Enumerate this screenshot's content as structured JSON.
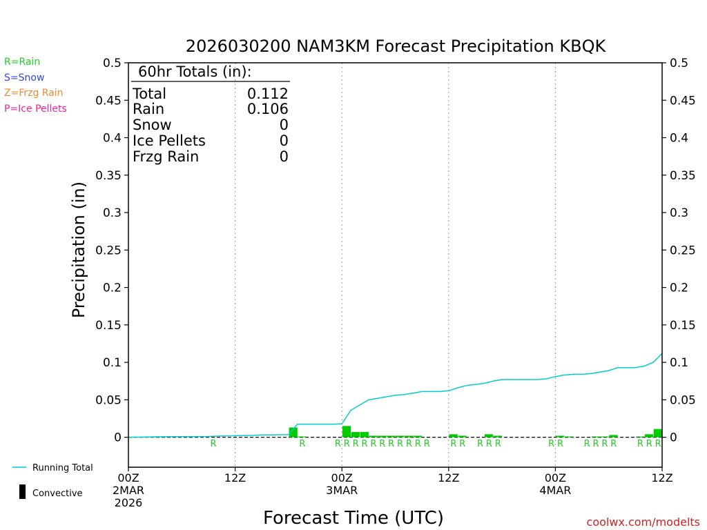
{
  "chart_data": {
    "type": "bar",
    "title": "2026030200 NAM3KM Forecast Precipitation KBQK",
    "xlabel": "Forecast Time (UTC)",
    "ylabel": "Precipitation (in)",
    "ylim": [
      -0.04,
      0.5
    ],
    "xlim": [
      0,
      60
    ],
    "y_ticks": [
      0,
      0.05,
      0.1,
      0.15,
      0.2,
      0.25,
      0.3,
      0.35,
      0.4,
      0.45,
      0.5
    ],
    "y_tick_labels": [
      "0",
      "0.05",
      "0.1",
      "0.15",
      "0.2",
      "0.25",
      "0.3",
      "0.35",
      "0.4",
      "0.45",
      "0.5"
    ],
    "x_ticks": [
      {
        "hour": 0,
        "lines": [
          "00Z",
          "2MAR",
          "2026"
        ]
      },
      {
        "hour": 12,
        "lines": [
          "12Z"
        ]
      },
      {
        "hour": 24,
        "lines": [
          "00Z",
          "3MAR"
        ]
      },
      {
        "hour": 36,
        "lines": [
          "12Z"
        ]
      },
      {
        "hour": 48,
        "lines": [
          "00Z",
          "4MAR"
        ]
      },
      {
        "hour": 60,
        "lines": [
          "12Z"
        ]
      }
    ],
    "grid_hours": [
      12,
      24,
      36,
      48
    ],
    "series": [
      {
        "name": "Convective",
        "type": "bar",
        "color": "#00cc00",
        "points": [
          {
            "hour": 19,
            "value": 0.013
          },
          {
            "hour": 20,
            "value": 0.001
          },
          {
            "hour": 25,
            "value": 0.015
          },
          {
            "hour": 26,
            "value": 0.007
          },
          {
            "hour": 27,
            "value": 0.007
          },
          {
            "hour": 28,
            "value": 0.002
          },
          {
            "hour": 29,
            "value": 0.002
          },
          {
            "hour": 30,
            "value": 0.002
          },
          {
            "hour": 31,
            "value": 0.002
          },
          {
            "hour": 32,
            "value": 0.002
          },
          {
            "hour": 33,
            "value": 0.002
          },
          {
            "hour": 37,
            "value": 0.004
          },
          {
            "hour": 38,
            "value": 0.002
          },
          {
            "hour": 41,
            "value": 0.004
          },
          {
            "hour": 42,
            "value": 0.002
          },
          {
            "hour": 49,
            "value": 0.002
          },
          {
            "hour": 50,
            "value": 0.001
          },
          {
            "hour": 53,
            "value": 0.001
          },
          {
            "hour": 54,
            "value": 0.001
          },
          {
            "hour": 55,
            "value": 0.003
          },
          {
            "hour": 58,
            "value": 0.001
          },
          {
            "hour": 59,
            "value": 0.004
          },
          {
            "hour": 60,
            "value": 0.011
          }
        ]
      },
      {
        "name": "Running Total",
        "type": "line",
        "color": "#00cccc",
        "x": [
          0,
          3,
          6,
          9,
          10,
          12,
          14,
          15,
          16,
          18,
          19,
          20,
          21,
          23,
          24,
          25,
          26,
          27,
          28,
          29,
          30,
          31,
          32,
          33,
          34,
          35,
          36,
          37,
          38,
          40,
          41,
          42,
          43,
          46,
          47,
          48,
          49,
          50,
          51,
          52,
          53,
          54,
          55,
          57,
          58,
          59,
          60
        ],
        "y": [
          0,
          0.0005,
          0.0008,
          0.001,
          0.0015,
          0.002,
          0.0025,
          0.003,
          0.003,
          0.0035,
          0.0175,
          0.0175,
          0.0175,
          0.0175,
          0.018,
          0.036,
          0.043,
          0.05,
          0.052,
          0.054,
          0.056,
          0.057,
          0.059,
          0.061,
          0.061,
          0.061,
          0.062,
          0.066,
          0.069,
          0.072,
          0.075,
          0.077,
          0.077,
          0.077,
          0.078,
          0.081,
          0.083,
          0.084,
          0.084,
          0.085,
          0.087,
          0.089,
          0.093,
          0.093,
          0.095,
          0.1,
          0.112
        ]
      }
    ],
    "precip_type_markers": [
      {
        "hour": 10,
        "label": "R"
      },
      {
        "hour": 20,
        "label": "R"
      },
      {
        "hour": 24,
        "label": "R"
      },
      {
        "hour": 25,
        "label": "R"
      },
      {
        "hour": 26,
        "label": "R"
      },
      {
        "hour": 27,
        "label": "R"
      },
      {
        "hour": 28,
        "label": "R"
      },
      {
        "hour": 29,
        "label": "R"
      },
      {
        "hour": 30,
        "label": "R"
      },
      {
        "hour": 31,
        "label": "R"
      },
      {
        "hour": 32,
        "label": "R"
      },
      {
        "hour": 33,
        "label": "R"
      },
      {
        "hour": 34,
        "label": "R"
      },
      {
        "hour": 37,
        "label": "R"
      },
      {
        "hour": 38,
        "label": "R"
      },
      {
        "hour": 40,
        "label": "R"
      },
      {
        "hour": 41,
        "label": "R"
      },
      {
        "hour": 42,
        "label": "R"
      },
      {
        "hour": 48,
        "label": "R"
      },
      {
        "hour": 49,
        "label": "R"
      },
      {
        "hour": 52,
        "label": "R"
      },
      {
        "hour": 53,
        "label": "R"
      },
      {
        "hour": 54,
        "label": "R"
      },
      {
        "hour": 55,
        "label": "R"
      },
      {
        "hour": 58,
        "label": "R"
      },
      {
        "hour": 59,
        "label": "R"
      },
      {
        "hour": 60,
        "label": "R"
      }
    ],
    "totals_box": {
      "heading": "60hr Totals (in):",
      "rows": [
        {
          "label": "Total",
          "value": "0.112"
        },
        {
          "label": "Rain",
          "value": "0.106"
        },
        {
          "label": "Snow",
          "value": "0"
        },
        {
          "label": "Ice Pellets",
          "value": "0"
        },
        {
          "label": "Frzg Rain",
          "value": "0"
        }
      ]
    }
  },
  "type_legend": [
    {
      "text": "R=Rain",
      "color": "#22cc22"
    },
    {
      "text": "S=Snow",
      "color": "#3344ee"
    },
    {
      "text": "Z=Frzg Rain",
      "color": "#ee8833"
    },
    {
      "text": "P=Ice Pellets",
      "color": "#ee2299"
    }
  ],
  "series_legend": {
    "running_total": "Running Total",
    "convective": "Convective"
  },
  "credit": "coolwx.com/modelts",
  "colors": {
    "axis": "#000000",
    "grid": "#999999",
    "bar": "#00cc00",
    "line": "#00cccc",
    "marker": "#22cc22",
    "credit": "#cc2222"
  }
}
